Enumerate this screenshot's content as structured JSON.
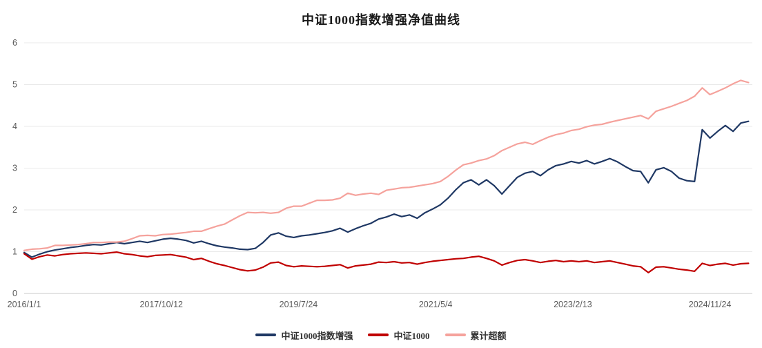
{
  "page": {
    "background": "#ffffff"
  },
  "chart_data": {
    "type": "line",
    "title": "中证1000指数增强净值曲线",
    "xlabel": "",
    "ylabel": "",
    "grid": "horizontal",
    "legend_position": "bottom-center",
    "x_unit": "decimal-year",
    "xlim": [
      2016.0,
      2025.45
    ],
    "ylim": [
      0,
      6
    ],
    "yticks": [
      0,
      1,
      2,
      3,
      4,
      5,
      6
    ],
    "xticks": [
      {
        "x": 2016.0,
        "label": "2016/1/1"
      },
      {
        "x": 2017.78,
        "label": "2017/10/12"
      },
      {
        "x": 2019.56,
        "label": "2019/7/24"
      },
      {
        "x": 2021.34,
        "label": "2021/5/4"
      },
      {
        "x": 2023.12,
        "label": "2023/2/13"
      },
      {
        "x": 2024.9,
        "label": "2024/11/24"
      }
    ],
    "x": [
      2016.0,
      2016.1,
      2016.2,
      2016.3,
      2016.4,
      2016.5,
      2016.6,
      2016.7,
      2016.8,
      2016.9,
      2017.0,
      2017.1,
      2017.2,
      2017.3,
      2017.4,
      2017.5,
      2017.6,
      2017.7,
      2017.8,
      2017.9,
      2018.0,
      2018.1,
      2018.2,
      2018.3,
      2018.4,
      2018.5,
      2018.6,
      2018.7,
      2018.8,
      2018.9,
      2019.0,
      2019.1,
      2019.2,
      2019.3,
      2019.4,
      2019.5,
      2019.6,
      2019.7,
      2019.8,
      2019.9,
      2020.0,
      2020.1,
      2020.2,
      2020.3,
      2020.4,
      2020.5,
      2020.6,
      2020.7,
      2020.8,
      2020.9,
      2021.0,
      2021.1,
      2021.2,
      2021.3,
      2021.4,
      2021.5,
      2021.6,
      2021.7,
      2021.8,
      2021.9,
      2022.0,
      2022.1,
      2022.2,
      2022.3,
      2022.4,
      2022.5,
      2022.6,
      2022.7,
      2022.8,
      2022.9,
      2023.0,
      2023.1,
      2023.2,
      2023.3,
      2023.4,
      2023.5,
      2023.6,
      2023.7,
      2023.8,
      2023.9,
      2024.0,
      2024.1,
      2024.2,
      2024.3,
      2024.4,
      2024.5,
      2024.6,
      2024.7,
      2024.8,
      2024.9,
      2025.0,
      2025.1,
      2025.2,
      2025.3,
      2025.4
    ],
    "series": [
      {
        "name": "中证1000指数增强",
        "color": "#1f3864",
        "values": [
          0.98,
          0.87,
          0.94,
          1.0,
          1.04,
          1.07,
          1.1,
          1.12,
          1.15,
          1.17,
          1.16,
          1.19,
          1.22,
          1.19,
          1.22,
          1.25,
          1.22,
          1.26,
          1.3,
          1.32,
          1.3,
          1.27,
          1.21,
          1.25,
          1.19,
          1.14,
          1.11,
          1.09,
          1.06,
          1.05,
          1.08,
          1.22,
          1.4,
          1.45,
          1.37,
          1.34,
          1.38,
          1.4,
          1.43,
          1.46,
          1.5,
          1.56,
          1.47,
          1.55,
          1.62,
          1.68,
          1.78,
          1.83,
          1.9,
          1.84,
          1.88,
          1.8,
          1.93,
          2.02,
          2.12,
          2.28,
          2.48,
          2.65,
          2.72,
          2.6,
          2.72,
          2.58,
          2.38,
          2.58,
          2.78,
          2.88,
          2.92,
          2.82,
          2.96,
          3.06,
          3.1,
          3.16,
          3.12,
          3.18,
          3.1,
          3.16,
          3.23,
          3.15,
          3.04,
          2.94,
          2.92,
          2.65,
          2.96,
          3.01,
          2.92,
          2.76,
          2.7,
          2.68,
          3.92,
          3.72,
          3.88,
          4.02,
          3.88,
          4.08,
          4.12
        ]
      },
      {
        "name": "中证1000",
        "color": "#c00000",
        "values": [
          0.95,
          0.82,
          0.88,
          0.92,
          0.9,
          0.93,
          0.95,
          0.96,
          0.97,
          0.96,
          0.95,
          0.97,
          0.99,
          0.95,
          0.93,
          0.9,
          0.88,
          0.91,
          0.92,
          0.93,
          0.9,
          0.87,
          0.81,
          0.84,
          0.77,
          0.71,
          0.67,
          0.62,
          0.57,
          0.54,
          0.56,
          0.63,
          0.73,
          0.75,
          0.67,
          0.64,
          0.66,
          0.65,
          0.64,
          0.65,
          0.67,
          0.69,
          0.61,
          0.66,
          0.68,
          0.7,
          0.75,
          0.74,
          0.76,
          0.73,
          0.74,
          0.7,
          0.74,
          0.77,
          0.79,
          0.81,
          0.83,
          0.84,
          0.87,
          0.89,
          0.84,
          0.78,
          0.68,
          0.74,
          0.79,
          0.81,
          0.78,
          0.74,
          0.77,
          0.79,
          0.76,
          0.78,
          0.76,
          0.78,
          0.74,
          0.76,
          0.78,
          0.74,
          0.7,
          0.66,
          0.64,
          0.5,
          0.63,
          0.64,
          0.61,
          0.58,
          0.56,
          0.53,
          0.72,
          0.67,
          0.7,
          0.72,
          0.68,
          0.71,
          0.72
        ]
      },
      {
        "name": "累计超额",
        "color": "#f5a29c",
        "values": [
          1.03,
          1.06,
          1.07,
          1.09,
          1.15,
          1.15,
          1.16,
          1.17,
          1.19,
          1.22,
          1.22,
          1.23,
          1.23,
          1.25,
          1.31,
          1.38,
          1.39,
          1.38,
          1.41,
          1.42,
          1.44,
          1.46,
          1.49,
          1.49,
          1.55,
          1.61,
          1.66,
          1.76,
          1.86,
          1.94,
          1.93,
          1.94,
          1.92,
          1.94,
          2.04,
          2.09,
          2.09,
          2.16,
          2.23,
          2.23,
          2.24,
          2.28,
          2.4,
          2.35,
          2.38,
          2.4,
          2.37,
          2.47,
          2.5,
          2.53,
          2.54,
          2.57,
          2.6,
          2.63,
          2.68,
          2.8,
          2.95,
          3.08,
          3.12,
          3.18,
          3.22,
          3.3,
          3.42,
          3.5,
          3.58,
          3.62,
          3.57,
          3.66,
          3.74,
          3.8,
          3.84,
          3.9,
          3.93,
          3.99,
          4.03,
          4.05,
          4.1,
          4.14,
          4.18,
          4.22,
          4.26,
          4.18,
          4.36,
          4.42,
          4.48,
          4.55,
          4.62,
          4.72,
          4.92,
          4.76,
          4.84,
          4.92,
          5.02,
          5.1,
          5.05
        ]
      }
    ]
  }
}
